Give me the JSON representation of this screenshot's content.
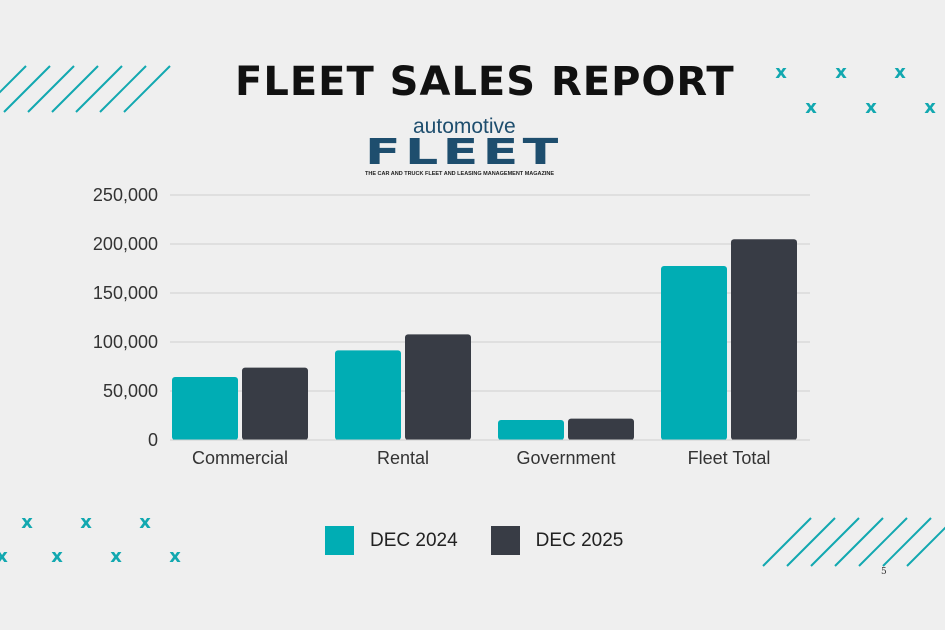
{
  "title": "FLEET SALES REPORT",
  "logo": {
    "top": "automotive",
    "main": "FLEET",
    "tagline": "THE CAR AND TRUCK FLEET AND LEASING MANAGEMENT MAGAZINE"
  },
  "page_number": "5",
  "colors": {
    "dec2024": "#00adb4",
    "dec2025": "#383c45",
    "accent": "#12a8b0"
  },
  "chart_data": {
    "type": "bar",
    "categories": [
      "Commercial",
      "Rental",
      "Government",
      "Fleet Total"
    ],
    "series": [
      {
        "name": "DEC 2024",
        "values": [
          64300,
          91500,
          20400,
          177600
        ]
      },
      {
        "name": "DEC 2025",
        "values": [
          73800,
          107800,
          21800,
          204800
        ]
      }
    ],
    "yticks": [
      "0",
      "50,000",
      "100,000",
      "150,000",
      "200,000",
      "250,000"
    ],
    "ylim": [
      0,
      250000
    ],
    "grid": true,
    "legend": "bottom"
  }
}
